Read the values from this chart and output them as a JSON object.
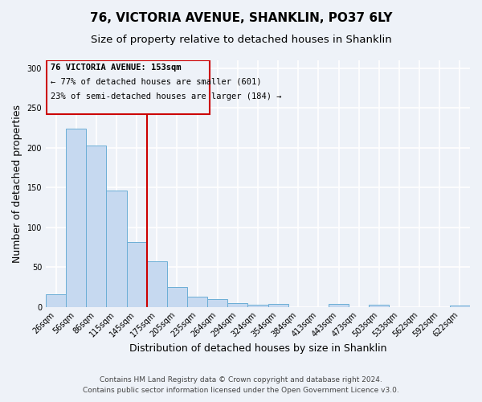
{
  "title": "76, VICTORIA AVENUE, SHANKLIN, PO37 6LY",
  "subtitle": "Size of property relative to detached houses in Shanklin",
  "xlabel": "Distribution of detached houses by size in Shanklin",
  "ylabel": "Number of detached properties",
  "bar_labels": [
    "26sqm",
    "56sqm",
    "86sqm",
    "115sqm",
    "145sqm",
    "175sqm",
    "205sqm",
    "235sqm",
    "264sqm",
    "294sqm",
    "324sqm",
    "354sqm",
    "384sqm",
    "413sqm",
    "443sqm",
    "473sqm",
    "503sqm",
    "533sqm",
    "562sqm",
    "592sqm",
    "622sqm"
  ],
  "bar_values": [
    16,
    224,
    203,
    146,
    82,
    57,
    25,
    13,
    10,
    5,
    3,
    4,
    0,
    0,
    4,
    0,
    3,
    0,
    0,
    0,
    2
  ],
  "bar_color": "#c6d9f0",
  "bar_edgecolor": "#6baed6",
  "ylim": [
    0,
    310
  ],
  "yticks": [
    0,
    50,
    100,
    150,
    200,
    250,
    300
  ],
  "property_label": "76 VICTORIA AVENUE: 153sqm",
  "annotation_line1": "← 77% of detached houses are smaller (601)",
  "annotation_line2": "23% of semi-detached houses are larger (184) →",
  "vline_x_index": 4.5,
  "annotation_box_color": "#cc0000",
  "footer_line1": "Contains HM Land Registry data © Crown copyright and database right 2024.",
  "footer_line2": "Contains public sector information licensed under the Open Government Licence v3.0.",
  "background_color": "#eef2f8",
  "grid_color": "#ffffff",
  "title_fontsize": 11,
  "subtitle_fontsize": 9.5,
  "axis_label_fontsize": 9,
  "tick_fontsize": 7,
  "footer_fontsize": 6.5
}
